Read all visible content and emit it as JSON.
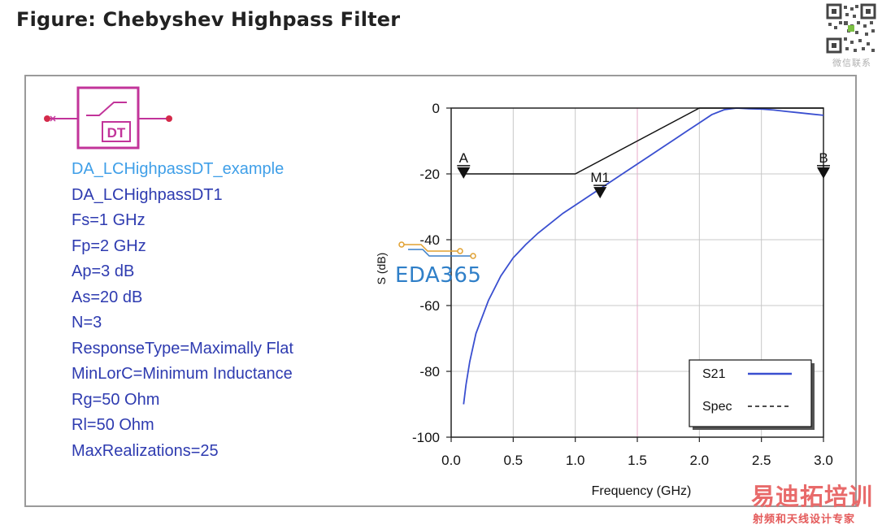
{
  "page": {
    "title": "Figure: Chebyshev Highpass Filter",
    "qr_caption": "微信联系"
  },
  "component": {
    "symbol_label": "DT",
    "symbol_color": "#c2349a",
    "params": [
      "DA_LCHighpassDT_example",
      "DA_LCHighpassDT1",
      "Fs=1 GHz",
      "Fp=2 GHz",
      "Ap=3 dB",
      "As=20 dB",
      "N=3",
      "ResponseType=Maximally Flat",
      "MinLorC=Minimum Inductance",
      "Rg=50 Ohm",
      "Rl=50 Ohm",
      "MaxRealizations=25"
    ]
  },
  "watermarks": {
    "eda": "EDA365",
    "cn_main": "易迪拓培训",
    "cn_sub": "射频和天线设计专家"
  },
  "chart_data": {
    "type": "line",
    "xlabel": "Frequency (GHz)",
    "ylabel": "S (dB)",
    "xlim": [
      0.0,
      3.0
    ],
    "ylim": [
      -100,
      0
    ],
    "xticks": [
      "0.0",
      "0.5",
      "1.0",
      "1.5",
      "2.0",
      "2.5",
      "3.0"
    ],
    "yticks": [
      "0",
      "-20",
      "-40",
      "-60",
      "-80",
      "-100"
    ],
    "grid": true,
    "legend_position": "bottom-right",
    "highlight_gridline_x": 1.5,
    "series": [
      {
        "name": "S21",
        "color": "#3a4fd0",
        "style": "solid",
        "x": [
          0.1,
          0.12,
          0.15,
          0.2,
          0.3,
          0.4,
          0.5,
          0.6,
          0.7,
          0.8,
          0.9,
          1.0,
          1.1,
          1.2,
          1.3,
          1.4,
          1.5,
          1.6,
          1.7,
          1.8,
          1.9,
          2.0,
          2.1,
          2.2,
          2.3,
          2.4,
          2.5,
          2.6,
          2.7,
          2.8,
          2.9,
          3.0
        ],
        "y": [
          -90,
          -84,
          -77,
          -68.5,
          -58.5,
          -51,
          -45.5,
          -41.5,
          -38,
          -35,
          -32,
          -29.5,
          -27,
          -24.5,
          -22,
          -19.5,
          -17,
          -14.5,
          -12,
          -9.5,
          -7,
          -4.5,
          -2,
          -0.5,
          0,
          -0.2,
          -0.3,
          -0.6,
          -1.0,
          -1.4,
          -1.8,
          -2.2
        ]
      },
      {
        "name": "Spec",
        "color": "#111111",
        "style": "dashed",
        "x": [
          0.1,
          1.0,
          2.0,
          3.0
        ],
        "y": [
          -20,
          -20,
          0,
          0
        ]
      }
    ],
    "markers": [
      {
        "label": "A",
        "x": 0.1,
        "y": -17
      },
      {
        "label": "M1",
        "x": 1.2,
        "y": -23
      },
      {
        "label": "B",
        "x": 3.0,
        "y": -17
      }
    ]
  }
}
